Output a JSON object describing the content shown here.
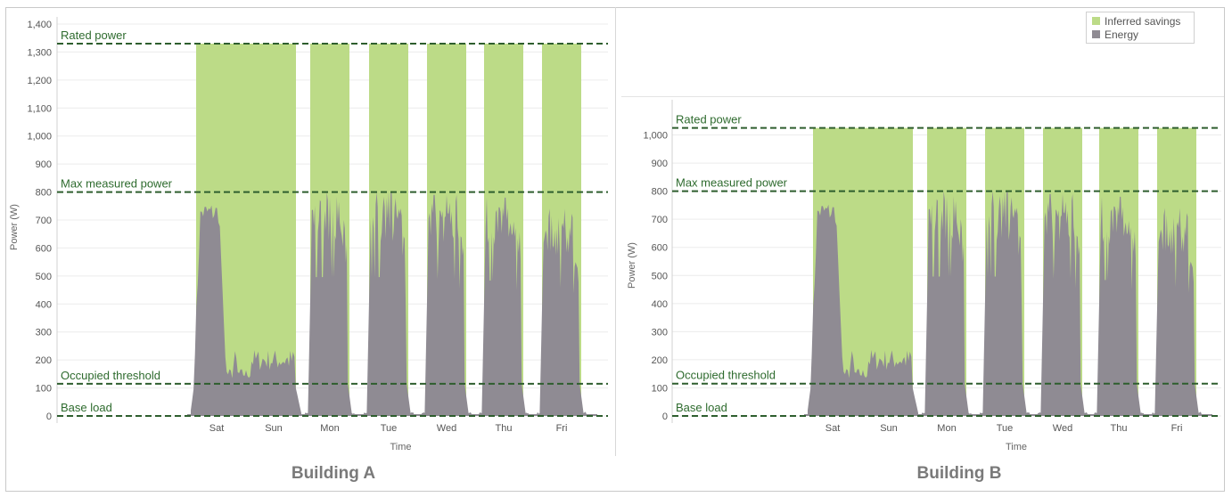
{
  "colors": {
    "savings": "#bcdb87",
    "energy": "#8f8b93",
    "reference": "#2e5e2e",
    "grid": "#ececec"
  },
  "legend": {
    "placement": "top-right",
    "items": [
      {
        "label": "Inferred savings",
        "color": "#bcdb87"
      },
      {
        "label": "Energy",
        "color": "#8f8b93"
      }
    ]
  },
  "captions": {
    "a": "Building A",
    "b": "Building B"
  },
  "chart_data": [
    {
      "type": "area",
      "caption": "Building A",
      "xlabel": "Time",
      "ylabel": "Power (W)",
      "ylim": [
        0,
        1400
      ],
      "yticks": [
        0,
        100,
        200,
        300,
        400,
        500,
        600,
        700,
        800,
        900,
        1000,
        1100,
        1200,
        1300,
        1400
      ],
      "grid": true,
      "days": [
        "Sat",
        "Sun",
        "Mon",
        "Tue",
        "Wed",
        "Thu",
        "Fri"
      ],
      "reference_lines": [
        {
          "label": "Rated power",
          "value": 1330
        },
        {
          "label": "Max measured power",
          "value": 800
        },
        {
          "label": "Occupied threshold",
          "value": 115
        },
        {
          "label": "Base load",
          "value": 0
        }
      ],
      "series": [
        {
          "name": "Inferred savings",
          "value": 1330,
          "days": [
            "Sat",
            "Sun",
            "Mon",
            "Tue",
            "Wed",
            "Thu",
            "Fri"
          ]
        },
        {
          "name": "Energy",
          "days": [
            "Sat",
            "Sun",
            "Mon",
            "Tue",
            "Wed",
            "Thu",
            "Fri"
          ],
          "peaks": [
            790,
            240,
            800,
            800,
            790,
            780,
            740
          ]
        }
      ]
    },
    {
      "type": "area",
      "caption": "Building B",
      "xlabel": "Time",
      "ylabel": "Power (W)",
      "ylim": [
        0,
        1100
      ],
      "yticks": [
        0,
        100,
        200,
        300,
        400,
        500,
        600,
        700,
        800,
        900,
        1000
      ],
      "grid": true,
      "days": [
        "Sat",
        "Sun",
        "Mon",
        "Tue",
        "Wed",
        "Thu",
        "Fri"
      ],
      "reference_lines": [
        {
          "label": "Rated power",
          "value": 1025
        },
        {
          "label": "Max measured power",
          "value": 800
        },
        {
          "label": "Occupied threshold",
          "value": 115
        },
        {
          "label": "Base load",
          "value": 0
        }
      ],
      "series": [
        {
          "name": "Inferred savings",
          "value": 1025,
          "days": [
            "Sat",
            "Sun",
            "Mon",
            "Tue",
            "Wed",
            "Thu",
            "Fri"
          ]
        },
        {
          "name": "Energy",
          "days": [
            "Sat",
            "Sun",
            "Mon",
            "Tue",
            "Wed",
            "Thu",
            "Fri"
          ],
          "peaks": [
            790,
            240,
            800,
            800,
            790,
            780,
            740
          ]
        }
      ]
    }
  ]
}
